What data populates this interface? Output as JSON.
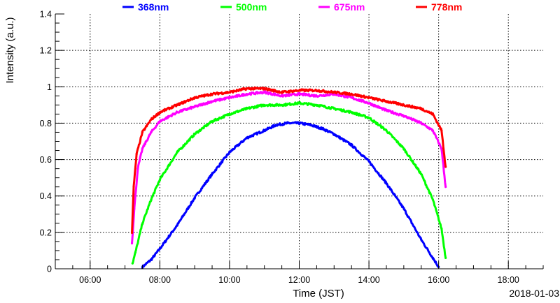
{
  "chart_data": {
    "type": "scatter",
    "title": "",
    "xlabel": "Time (JST)",
    "ylabel": "Intensity (a.u.)",
    "date_label": "2018-01-03",
    "xlim": [
      "05:00",
      "19:00"
    ],
    "ylim": [
      0,
      1.4
    ],
    "x_ticks": [
      "06:00",
      "08:00",
      "10:00",
      "12:00",
      "14:00",
      "16:00",
      "18:00"
    ],
    "y_ticks": [
      "0",
      "0.2",
      "0.4",
      "0.6",
      "0.8",
      "1",
      "1.2",
      "1.4"
    ],
    "grid": true,
    "legend_position": "top",
    "series": [
      {
        "name": "368nm",
        "color": "#0000ff",
        "x": [
          "07:30",
          "07:45",
          "08:00",
          "08:30",
          "09:00",
          "09:30",
          "10:00",
          "10:30",
          "11:00",
          "11:20",
          "11:40",
          "12:00",
          "12:20",
          "12:40",
          "13:00",
          "13:30",
          "14:00",
          "14:30",
          "15:00",
          "15:30",
          "15:50",
          "16:00"
        ],
        "y": [
          0.01,
          0.05,
          0.11,
          0.24,
          0.39,
          0.52,
          0.64,
          0.72,
          0.76,
          0.79,
          0.8,
          0.8,
          0.79,
          0.77,
          0.74,
          0.68,
          0.59,
          0.47,
          0.33,
          0.16,
          0.06,
          0.01
        ]
      },
      {
        "name": "500nm",
        "color": "#00ff00",
        "x": [
          "07:13",
          "07:18",
          "07:30",
          "07:45",
          "08:00",
          "08:30",
          "09:00",
          "09:30",
          "10:00",
          "10:30",
          "11:00",
          "11:30",
          "12:00",
          "12:30",
          "13:00",
          "13:30",
          "14:00",
          "14:30",
          "15:00",
          "15:30",
          "15:50",
          "16:05",
          "16:12"
        ],
        "y": [
          0.03,
          0.09,
          0.25,
          0.38,
          0.49,
          0.64,
          0.74,
          0.81,
          0.85,
          0.88,
          0.9,
          0.9,
          0.91,
          0.9,
          0.88,
          0.86,
          0.83,
          0.76,
          0.66,
          0.52,
          0.38,
          0.22,
          0.06
        ]
      },
      {
        "name": "675nm",
        "color": "#ff00ff",
        "x": [
          "07:12",
          "07:16",
          "07:22",
          "07:30",
          "07:45",
          "08:00",
          "08:30",
          "09:00",
          "09:30",
          "10:00",
          "10:30",
          "11:00",
          "11:30",
          "12:00",
          "12:30",
          "13:00",
          "13:30",
          "14:00",
          "14:30",
          "15:00",
          "15:30",
          "15:50",
          "16:05",
          "16:12"
        ],
        "y": [
          0.14,
          0.33,
          0.55,
          0.66,
          0.75,
          0.81,
          0.86,
          0.89,
          0.92,
          0.94,
          0.96,
          0.97,
          0.95,
          0.96,
          0.95,
          0.96,
          0.94,
          0.91,
          0.87,
          0.84,
          0.8,
          0.76,
          0.66,
          0.45
        ]
      },
      {
        "name": "778nm",
        "color": "#ff0000",
        "x": [
          "07:12",
          "07:15",
          "07:20",
          "07:30",
          "07:45",
          "08:00",
          "08:30",
          "09:00",
          "09:30",
          "10:00",
          "10:30",
          "11:00",
          "11:30",
          "12:00",
          "12:30",
          "13:00",
          "13:30",
          "14:00",
          "14:30",
          "15:00",
          "15:30",
          "15:50",
          "16:05",
          "16:12"
        ],
        "y": [
          0.2,
          0.45,
          0.63,
          0.75,
          0.82,
          0.86,
          0.9,
          0.94,
          0.96,
          0.97,
          0.99,
          0.99,
          0.97,
          0.98,
          0.98,
          0.97,
          0.96,
          0.94,
          0.92,
          0.9,
          0.88,
          0.85,
          0.76,
          0.56
        ]
      }
    ]
  }
}
